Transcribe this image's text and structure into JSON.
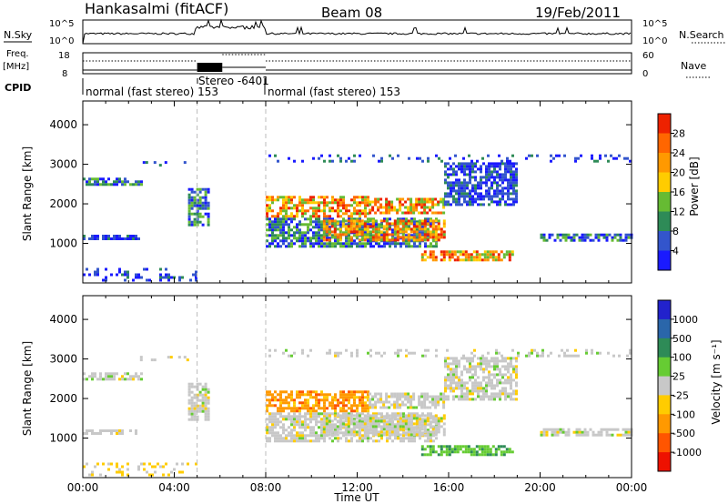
{
  "header": {
    "station": "Hankasalmi (fitACF)",
    "beam": "Beam 08",
    "date": "19/Feb/2011"
  },
  "summary": {
    "nsky_label": "N.Sky",
    "nsearch_label": "N.Search",
    "nsky_ticks": [
      "10^5",
      "10^0"
    ],
    "nsearch_ticks": [
      "10^5",
      "10^0"
    ],
    "freq_label": "Freq.",
    "freq_unit": "[MHz]",
    "freq_ticks": [
      "18",
      "8"
    ],
    "nave_label": "Nave",
    "nave_ticks": [
      "60",
      "0"
    ],
    "cpid_label": "CPID",
    "cpid_segments": [
      {
        "text": "normal (fast stereo) 153",
        "start_h": 0,
        "end_h": 5
      },
      {
        "text": "Stereo -6401",
        "start_h": 5,
        "end_h": 8
      },
      {
        "text": "normal (fast stereo) 153",
        "start_h": 8,
        "end_h": 24
      }
    ]
  },
  "chart_data": [
    {
      "type": "heatmap",
      "name": "power",
      "ylabel": "Slant Range [km]",
      "ylim": [
        0,
        4600
      ],
      "yticks": [
        1000,
        2000,
        3000,
        4000
      ],
      "xlim": [
        0,
        24
      ],
      "colorbar_label": "Power [dB]",
      "colorbar_ticks": [
        "4",
        "8",
        "12",
        "16",
        "20",
        "24",
        "28"
      ],
      "colors": [
        "#1a1aff",
        "#3355cc",
        "#2e8b57",
        "#66bb33",
        "#ffcc00",
        "#ff9900",
        "#ff6600",
        "#ee2200"
      ]
    },
    {
      "type": "heatmap",
      "name": "velocity",
      "ylabel": "Slant Range [km]",
      "ylim": [
        0,
        4600
      ],
      "yticks": [
        1000,
        2000,
        3000,
        4000
      ],
      "xlim": [
        0,
        24
      ],
      "xticks": [
        "00:00",
        "04:00",
        "08:00",
        "12:00",
        "16:00",
        "20:00",
        "00:00"
      ],
      "xlabel": "Time UT",
      "colorbar_label": "Velocity [m s⁻¹]",
      "colorbar_ticks": [
        "1000",
        "500",
        "100",
        "25",
        "-25",
        "-100",
        "-500",
        "-1000"
      ],
      "colors": [
        "#2222cc",
        "#2a66aa",
        "#2e8b57",
        "#66cc33",
        "#c8c8c8",
        "#ffcc00",
        "#ff9900",
        "#ff5500",
        "#ee1100"
      ]
    }
  ],
  "echo_regions": [
    {
      "t0": 0.0,
      "t1": 2.6,
      "r0": 2520,
      "r1": 2660,
      "kind": "mid"
    },
    {
      "t0": 0.0,
      "t1": 2.4,
      "r0": 1100,
      "r1": 1220,
      "kind": "low"
    },
    {
      "t0": 0.0,
      "t1": 5.0,
      "r0": 100,
      "r1": 380,
      "kind": "weak"
    },
    {
      "t0": 2.5,
      "t1": 4.7,
      "r0": 3000,
      "r1": 3080,
      "kind": "weak"
    },
    {
      "t0": 4.6,
      "t1": 5.5,
      "r0": 1450,
      "r1": 2400,
      "kind": "mid"
    },
    {
      "t0": 8.0,
      "t1": 12.5,
      "r0": 1700,
      "r1": 2200,
      "kind": "high"
    },
    {
      "t0": 12.5,
      "t1": 15.8,
      "r0": 1800,
      "r1": 2150,
      "kind": "high"
    },
    {
      "t0": 8.0,
      "t1": 15.5,
      "r0": 950,
      "r1": 1650,
      "kind": "mid"
    },
    {
      "t0": 10.5,
      "t1": 15.8,
      "r0": 1100,
      "r1": 1600,
      "kind": "high"
    },
    {
      "t0": 14.8,
      "t1": 18.8,
      "r0": 560,
      "r1": 820,
      "kind": "high"
    },
    {
      "t0": 15.8,
      "t1": 19.0,
      "r0": 2000,
      "r1": 3050,
      "kind": "low"
    },
    {
      "t0": 20.0,
      "t1": 24.0,
      "r0": 1050,
      "r1": 1250,
      "kind": "mid"
    },
    {
      "t0": 8.0,
      "t1": 24.0,
      "r0": 3080,
      "r1": 3250,
      "kind": "weak"
    }
  ]
}
